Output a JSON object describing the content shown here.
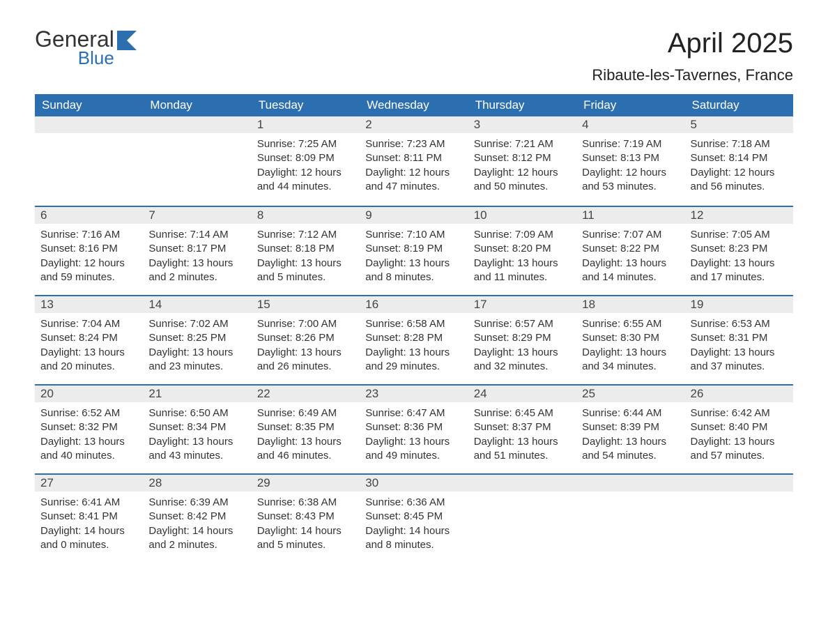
{
  "logo": {
    "general": "General",
    "blue": "Blue",
    "accent_color": "#2b6fb0"
  },
  "title": "April 2025",
  "location": "Ribaute-les-Tavernes, France",
  "header_bg": "#2b6fb0",
  "header_text_color": "#ffffff",
  "daynum_bg": "#ececec",
  "week_border_color": "#2b6fb0",
  "day_headers": [
    "Sunday",
    "Monday",
    "Tuesday",
    "Wednesday",
    "Thursday",
    "Friday",
    "Saturday"
  ],
  "weeks": [
    [
      null,
      null,
      {
        "n": "1",
        "sr": "7:25 AM",
        "ss": "8:09 PM",
        "dl": "12 hours and 44 minutes."
      },
      {
        "n": "2",
        "sr": "7:23 AM",
        "ss": "8:11 PM",
        "dl": "12 hours and 47 minutes."
      },
      {
        "n": "3",
        "sr": "7:21 AM",
        "ss": "8:12 PM",
        "dl": "12 hours and 50 minutes."
      },
      {
        "n": "4",
        "sr": "7:19 AM",
        "ss": "8:13 PM",
        "dl": "12 hours and 53 minutes."
      },
      {
        "n": "5",
        "sr": "7:18 AM",
        "ss": "8:14 PM",
        "dl": "12 hours and 56 minutes."
      }
    ],
    [
      {
        "n": "6",
        "sr": "7:16 AM",
        "ss": "8:16 PM",
        "dl": "12 hours and 59 minutes."
      },
      {
        "n": "7",
        "sr": "7:14 AM",
        "ss": "8:17 PM",
        "dl": "13 hours and 2 minutes."
      },
      {
        "n": "8",
        "sr": "7:12 AM",
        "ss": "8:18 PM",
        "dl": "13 hours and 5 minutes."
      },
      {
        "n": "9",
        "sr": "7:10 AM",
        "ss": "8:19 PM",
        "dl": "13 hours and 8 minutes."
      },
      {
        "n": "10",
        "sr": "7:09 AM",
        "ss": "8:20 PM",
        "dl": "13 hours and 11 minutes."
      },
      {
        "n": "11",
        "sr": "7:07 AM",
        "ss": "8:22 PM",
        "dl": "13 hours and 14 minutes."
      },
      {
        "n": "12",
        "sr": "7:05 AM",
        "ss": "8:23 PM",
        "dl": "13 hours and 17 minutes."
      }
    ],
    [
      {
        "n": "13",
        "sr": "7:04 AM",
        "ss": "8:24 PM",
        "dl": "13 hours and 20 minutes."
      },
      {
        "n": "14",
        "sr": "7:02 AM",
        "ss": "8:25 PM",
        "dl": "13 hours and 23 minutes."
      },
      {
        "n": "15",
        "sr": "7:00 AM",
        "ss": "8:26 PM",
        "dl": "13 hours and 26 minutes."
      },
      {
        "n": "16",
        "sr": "6:58 AM",
        "ss": "8:28 PM",
        "dl": "13 hours and 29 minutes."
      },
      {
        "n": "17",
        "sr": "6:57 AM",
        "ss": "8:29 PM",
        "dl": "13 hours and 32 minutes."
      },
      {
        "n": "18",
        "sr": "6:55 AM",
        "ss": "8:30 PM",
        "dl": "13 hours and 34 minutes."
      },
      {
        "n": "19",
        "sr": "6:53 AM",
        "ss": "8:31 PM",
        "dl": "13 hours and 37 minutes."
      }
    ],
    [
      {
        "n": "20",
        "sr": "6:52 AM",
        "ss": "8:32 PM",
        "dl": "13 hours and 40 minutes."
      },
      {
        "n": "21",
        "sr": "6:50 AM",
        "ss": "8:34 PM",
        "dl": "13 hours and 43 minutes."
      },
      {
        "n": "22",
        "sr": "6:49 AM",
        "ss": "8:35 PM",
        "dl": "13 hours and 46 minutes."
      },
      {
        "n": "23",
        "sr": "6:47 AM",
        "ss": "8:36 PM",
        "dl": "13 hours and 49 minutes."
      },
      {
        "n": "24",
        "sr": "6:45 AM",
        "ss": "8:37 PM",
        "dl": "13 hours and 51 minutes."
      },
      {
        "n": "25",
        "sr": "6:44 AM",
        "ss": "8:39 PM",
        "dl": "13 hours and 54 minutes."
      },
      {
        "n": "26",
        "sr": "6:42 AM",
        "ss": "8:40 PM",
        "dl": "13 hours and 57 minutes."
      }
    ],
    [
      {
        "n": "27",
        "sr": "6:41 AM",
        "ss": "8:41 PM",
        "dl": "14 hours and 0 minutes."
      },
      {
        "n": "28",
        "sr": "6:39 AM",
        "ss": "8:42 PM",
        "dl": "14 hours and 2 minutes."
      },
      {
        "n": "29",
        "sr": "6:38 AM",
        "ss": "8:43 PM",
        "dl": "14 hours and 5 minutes."
      },
      {
        "n": "30",
        "sr": "6:36 AM",
        "ss": "8:45 PM",
        "dl": "14 hours and 8 minutes."
      },
      null,
      null,
      null
    ]
  ],
  "labels": {
    "sunrise": "Sunrise: ",
    "sunset": "Sunset: ",
    "daylight": "Daylight: "
  }
}
